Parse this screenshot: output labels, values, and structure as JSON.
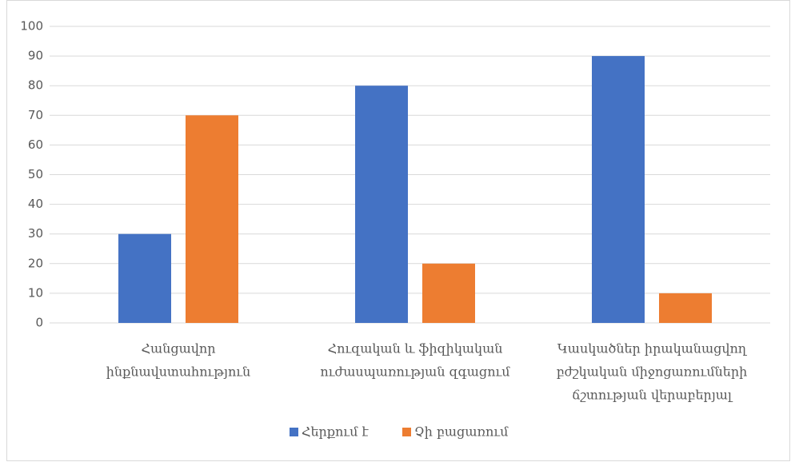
{
  "chart_data": {
    "type": "bar",
    "categories": [
      [
        "Հանցավոր",
        "ինքնավստահություն"
      ],
      [
        "Հուզական և ֆիզիկական",
        "ուժասպառության զգացում"
      ],
      [
        "Կասկածներ իրականացվող",
        "բժշկական միջոցառումների",
        "ճշտության վերաբերյալ"
      ]
    ],
    "series": [
      {
        "name": "Հերքում է",
        "color": "#4472c4",
        "values": [
          30,
          80,
          90
        ]
      },
      {
        "name": "Չի բացառում",
        "color": "#ed7d31",
        "values": [
          70,
          20,
          10
        ]
      }
    ],
    "ylim": [
      0,
      100
    ],
    "yticks": [
      0,
      10,
      20,
      30,
      40,
      50,
      60,
      70,
      80,
      90,
      100
    ],
    "grid": true,
    "legend": "bottom"
  }
}
